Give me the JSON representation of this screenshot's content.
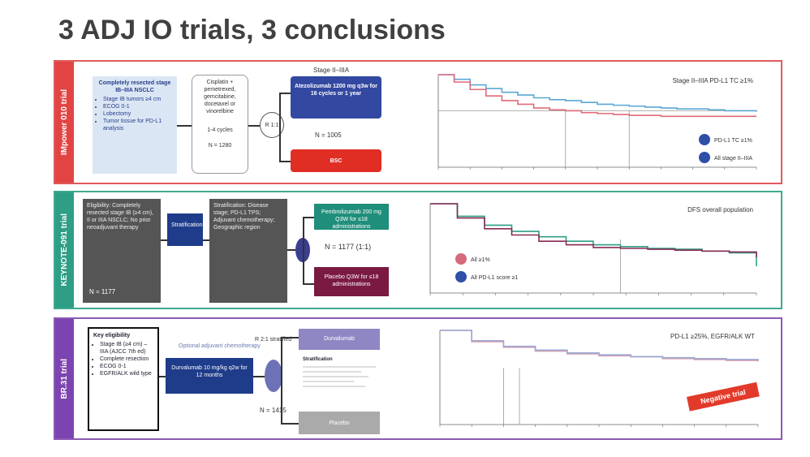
{
  "title": "3 ADJ IO trials, 3 conclusions",
  "panels": [
    {
      "side_label": "IMpower 010 trial",
      "eligibility_heading": "Completely resected stage IB–IIIA NSCLC",
      "eligibility_items": [
        "Stage IB tumors ≥4 cm",
        "ECOG 0-1",
        "Lobectomy",
        "Tumor tissue for PD-L1 analysis"
      ],
      "chemo_box": "Cisplatin + pemetrexed, gemcitabine, docetaxel or vinorelbine",
      "chemo_cycles": "1-4 cycles",
      "chemo_n": "N = 1280",
      "randomize": "R 1:1",
      "top_label": "Stage II–IIIA",
      "arm1": "Atezolizumab 1200 mg q3w for 16 cycles or 1 year",
      "n_label": "N = 1005",
      "arm2": "BSC",
      "plot_label": "Stage II–IIIA PD-L1 TC ≥1%",
      "legend": [
        "PD-L1 TC ≥1%",
        "All stage II–IIIA"
      ]
    },
    {
      "side_label": "KEYNOTE-091 trial",
      "box1": "Eligibility: Completely resected stage IB (≥4 cm), II or IIIA NSCLC; No prior neoadjuvant therapy",
      "box2": "Stratification",
      "box3": "Stratification: Disease stage; PD-L1 TPS; Adjuvant chemotherapy; Geographic region",
      "arm1": "Pembrolizumab 200 mg Q3W for ≤18 administrations",
      "arm2": "Placebo Q3W for ≤18 administrations",
      "n_label": "N = 1177 (1:1)",
      "n_total": "N = 1177",
      "plot_label": "DFS overall population",
      "legend": [
        "All ≥1%",
        "All PD-L1 score ≥1"
      ]
    },
    {
      "side_label": "BR.31 trial",
      "eligibility_heading": "Key eligibility",
      "eligibility_items": [
        "Stage IB (≥4 cm) – IIIA (AJCC 7th ed)",
        "Complete resection",
        "ECOG 0-1",
        "EGFR/ALK wild type"
      ],
      "arm_mid": "Durvalumab 10 mg/kg q2w for 12 months",
      "tag": "Optional adjuvant chemotherapy",
      "randomize_note": "R 2:1 stratified",
      "n_label": "N = 1415",
      "arm1": "Durvalumab",
      "arm2": "Placebo",
      "notes_heading": "Stratification",
      "plot_label": "PD-L1 ≥25%, EGFR/ALK WT",
      "badge": "Negative trial"
    }
  ],
  "chart_data": [
    {
      "type": "line",
      "title": "Stage II–IIIA PD-L1 TC ≥1%",
      "series": [
        {
          "name": "PD-L1 TC ≥1%",
          "color": "#5aa7d6",
          "x": [
            0,
            3,
            6,
            9,
            12,
            15,
            18,
            21,
            24,
            27,
            30,
            33,
            36,
            39,
            42,
            45,
            48,
            51,
            54,
            57,
            60
          ],
          "y": [
            100,
            95,
            89,
            85,
            81,
            78,
            75,
            73,
            72,
            70,
            68,
            67,
            66,
            65,
            64,
            63,
            63,
            62,
            61,
            61,
            60
          ]
        },
        {
          "name": "All stage II–IIIA",
          "color": "#e06a7a",
          "x": [
            0,
            3,
            6,
            9,
            12,
            15,
            18,
            21,
            24,
            27,
            30,
            33,
            36,
            39,
            42,
            45,
            48,
            51,
            54,
            57,
            60
          ],
          "y": [
            100,
            92,
            84,
            77,
            72,
            68,
            64,
            62,
            61,
            59,
            58,
            57,
            56,
            56,
            55,
            55,
            55,
            55,
            55,
            55,
            55
          ]
        }
      ],
      "ylim": [
        0,
        100
      ]
    },
    {
      "type": "line",
      "title": "DFS overall population",
      "series": [
        {
          "name": "All ≥1%",
          "color": "#2e9e85",
          "x": [
            0,
            6,
            12,
            18,
            24,
            30,
            36,
            42,
            48,
            54,
            60,
            66,
            72
          ],
          "y": [
            100,
            86,
            76,
            69,
            63,
            58,
            54,
            52,
            50,
            49,
            47,
            45,
            30
          ]
        },
        {
          "name": "All PD-L1 score ≥1",
          "color": "#8a2b55",
          "x": [
            0,
            6,
            12,
            18,
            24,
            30,
            36,
            42,
            48,
            54,
            60,
            66,
            72
          ],
          "y": [
            100,
            84,
            72,
            65,
            58,
            54,
            51,
            50,
            49,
            48,
            47,
            46,
            40
          ]
        }
      ],
      "ylim": [
        0,
        100
      ]
    },
    {
      "type": "line",
      "title": "PD-L1 ≥25%, EGFR/ALK WT",
      "series": [
        {
          "name": "Durvalumab",
          "color": "#d8a0b0",
          "x": [
            0,
            6,
            12,
            18,
            24,
            30,
            36,
            42,
            48,
            54,
            60
          ],
          "y": [
            100,
            88,
            82,
            78,
            75,
            73,
            72,
            70,
            69,
            68,
            67
          ]
        },
        {
          "name": "Placebo",
          "color": "#9aa8d4",
          "x": [
            0,
            6,
            12,
            18,
            24,
            30,
            36,
            42,
            48,
            54,
            60
          ],
          "y": [
            100,
            89,
            83,
            79,
            76,
            74,
            72,
            71,
            70,
            69,
            68
          ]
        }
      ],
      "ylim": [
        0,
        100
      ]
    }
  ]
}
